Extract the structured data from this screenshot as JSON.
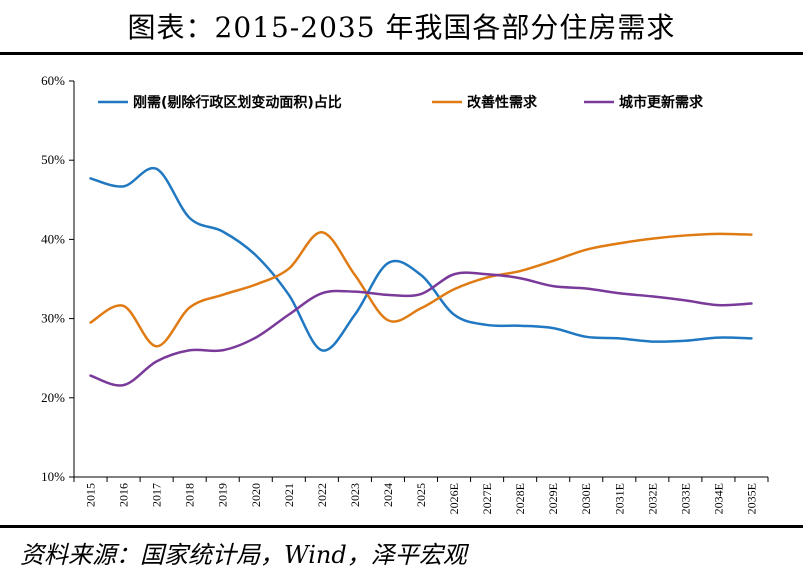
{
  "title": "图表：2015-2035 年我国各部分住房需求",
  "source": "资料来源：国家统计局，Wind，泽平宏观",
  "colors": {
    "rigid": "#1f78c1",
    "improve": "#e07b14",
    "renewal": "#7a3a9a",
    "axis": "#000000"
  },
  "chart_data": {
    "type": "line",
    "title": "图表：2015-2035 年我国各部分住房需求",
    "xlabel": "",
    "ylabel": "",
    "ylim": [
      10,
      60
    ],
    "yticks": [
      "10%",
      "20%",
      "30%",
      "40%",
      "50%",
      "60%"
    ],
    "categories": [
      "2015",
      "2016",
      "2017",
      "2018",
      "2019",
      "2020",
      "2021",
      "2022",
      "2023",
      "2024",
      "2025",
      "2026E",
      "2027E",
      "2028E",
      "2029E",
      "2030E",
      "2031E",
      "2032E",
      "2033E",
      "2034E",
      "2035E"
    ],
    "legend_position": "top",
    "series": [
      {
        "name": "刚需(剔除行政区划变动面积)占比",
        "color_key": "rigid",
        "values": [
          47.7,
          46.7,
          48.9,
          42.7,
          41.0,
          38.0,
          33.0,
          26.0,
          30.5,
          37.0,
          35.5,
          30.5,
          29.2,
          29.1,
          28.8,
          27.7,
          27.5,
          27.1,
          27.2,
          27.6,
          27.5
        ]
      },
      {
        "name": "改善性需求",
        "color_key": "improve",
        "values": [
          29.5,
          31.6,
          26.5,
          31.4,
          33.0,
          34.3,
          36.3,
          40.9,
          35.5,
          29.8,
          31.3,
          33.7,
          35.2,
          36.0,
          37.3,
          38.7,
          39.5,
          40.1,
          40.5,
          40.7,
          40.6
        ]
      },
      {
        "name": "城市更新需求",
        "color_key": "renewal",
        "values": [
          22.8,
          21.6,
          24.6,
          26.0,
          26.0,
          27.6,
          30.5,
          33.2,
          33.4,
          33.0,
          33.1,
          35.6,
          35.6,
          35.1,
          34.1,
          33.8,
          33.2,
          32.8,
          32.3,
          31.7,
          31.9
        ]
      }
    ]
  }
}
